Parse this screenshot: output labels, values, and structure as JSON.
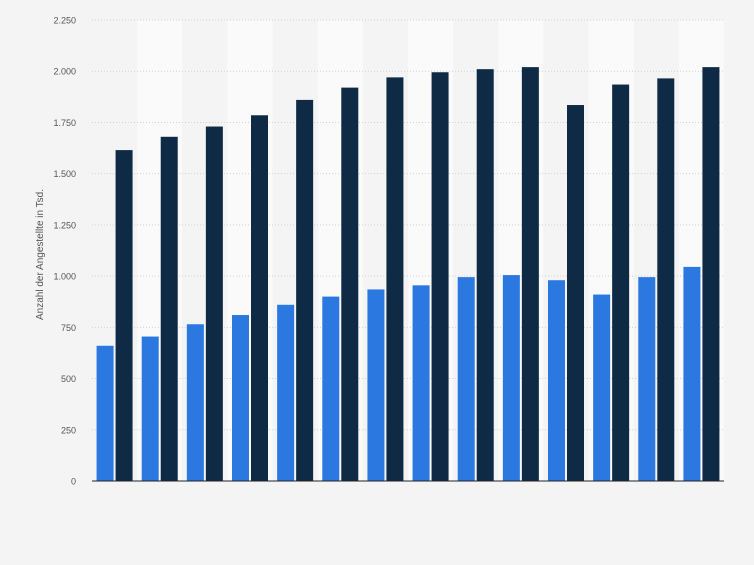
{
  "chart_data": {
    "type": "bar",
    "ylabel": "Anzahl der Angestellte in Tsd.",
    "ylim": [
      0,
      2250
    ],
    "yticks": [
      0,
      250,
      500,
      750,
      1000,
      1250,
      1500,
      1750,
      2000,
      2250
    ],
    "ytick_labels": [
      "0",
      "250",
      "500",
      "750",
      "1.000",
      "1.250",
      "1.500",
      "1.750",
      "2.000",
      "2.250"
    ],
    "grid": true,
    "categories": [
      "",
      "",
      "",
      "",
      "",
      "",
      "",
      "",
      "",
      "",
      "",
      "",
      "",
      ""
    ],
    "series": [
      {
        "color": "#2a78e0",
        "values": [
          660,
          705,
          765,
          810,
          860,
          900,
          935,
          955,
          995,
          1005,
          980,
          910,
          995,
          1045
        ]
      },
      {
        "color": "#0f2a44",
        "values": [
          1615,
          1680,
          1730,
          1785,
          1860,
          1920,
          1970,
          1995,
          2010,
          2020,
          1835,
          1935,
          1965,
          2020
        ]
      }
    ]
  }
}
